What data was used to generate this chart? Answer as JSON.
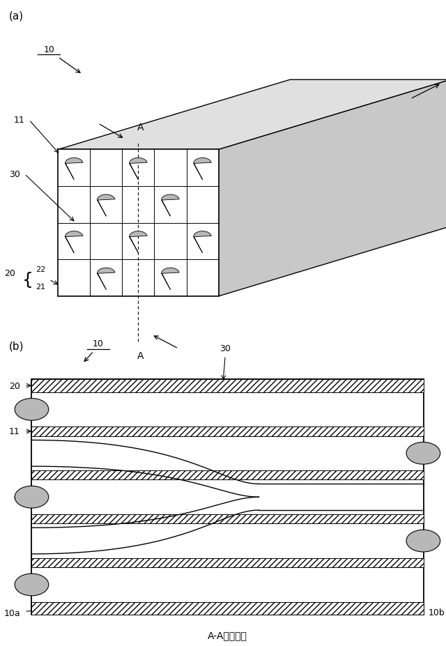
{
  "bg_color": "#ffffff",
  "line_color": "#000000",
  "fig_width": 6.4,
  "fig_height": 9.28,
  "label_a": "(a)",
  "label_b": "(b)",
  "caption": "A-A線断面図",
  "top_face_color": "#e0e0e0",
  "right_face_color": "#c8c8c8",
  "front_face_color": "#ffffff",
  "plug_fill": "#b8b8b8",
  "hatch_fill": "#ffffff"
}
